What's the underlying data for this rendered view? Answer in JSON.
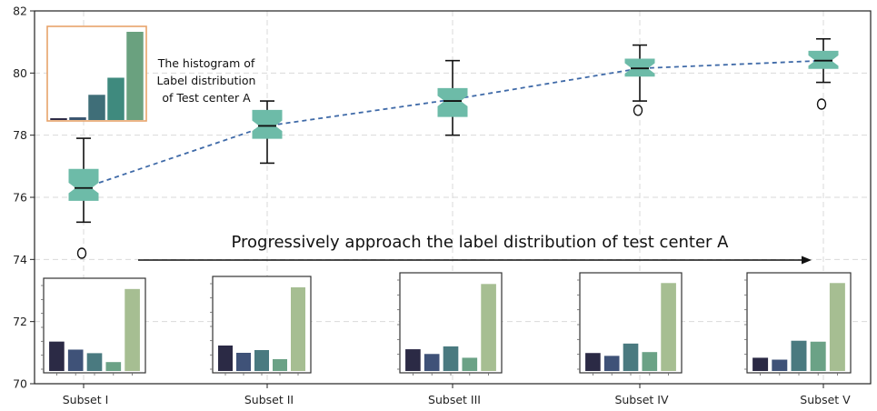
{
  "chart_data": {
    "type": "box",
    "categories": [
      "Subset I",
      "Subset II",
      "Subset III",
      "Subset IV",
      "Subset V"
    ],
    "ylim": [
      70,
      82
    ],
    "yticks": [
      "70",
      "72",
      "74",
      "76",
      "78",
      "80",
      "82"
    ],
    "grid": true,
    "box_color": "#6dbba8",
    "line_color": "#3f6aa8",
    "boxes": [
      {
        "whisker_low": 75.2,
        "q1": 75.9,
        "median": 76.3,
        "q3": 76.9,
        "whisker_high": 77.9,
        "outliers": [
          74.2
        ]
      },
      {
        "whisker_low": 77.1,
        "q1": 77.9,
        "median": 78.3,
        "q3": 78.8,
        "whisker_high": 79.1,
        "outliers": []
      },
      {
        "whisker_low": 78.0,
        "q1": 78.6,
        "median": 79.1,
        "q3": 79.5,
        "whisker_high": 80.4,
        "outliers": []
      },
      {
        "whisker_low": 79.1,
        "q1": 79.9,
        "median": 80.15,
        "q3": 80.45,
        "whisker_high": 80.9,
        "outliers": [
          78.8
        ]
      },
      {
        "whisker_low": 79.7,
        "q1": 80.15,
        "median": 80.4,
        "q3": 80.7,
        "whisker_high": 81.1,
        "outliers": [
          79.0
        ]
      }
    ],
    "mean_line": [
      76.3,
      78.3,
      79.15,
      80.15,
      80.4
    ],
    "annotation": "Progressively approach the label distribution of test center A",
    "inset_label": [
      "The histogram of",
      "Label distribution",
      "of Test center A"
    ],
    "inset_hist": {
      "title_box_color": "#e8a36a",
      "values": [
        0.02,
        0.03,
        0.28,
        0.47,
        0.98
      ],
      "colors": [
        "#2d2a45",
        "#3a5670",
        "#3f6e78",
        "#3f8a7e",
        "#6aa17f"
      ]
    },
    "subset_hists": [
      {
        "values": [
          0.33,
          0.24,
          0.2,
          0.1,
          0.92
        ],
        "colors": [
          "#2b2a45",
          "#3f5278",
          "#4a7a80",
          "#6ba286",
          "#a6be92"
        ]
      },
      {
        "values": [
          0.28,
          0.2,
          0.23,
          0.13,
          0.92
        ],
        "colors": [
          "#2b2a45",
          "#3f5278",
          "#4a7a80",
          "#6ba286",
          "#a6be92"
        ]
      },
      {
        "values": [
          0.23,
          0.18,
          0.26,
          0.14,
          0.92
        ],
        "colors": [
          "#2b2a45",
          "#3f5278",
          "#4a7a80",
          "#6ba286",
          "#a6be92"
        ]
      },
      {
        "values": [
          0.19,
          0.16,
          0.29,
          0.2,
          0.93
        ],
        "colors": [
          "#2b2a45",
          "#3f5278",
          "#4a7a80",
          "#6ba286",
          "#a6be92"
        ]
      },
      {
        "values": [
          0.14,
          0.12,
          0.32,
          0.31,
          0.93
        ],
        "colors": [
          "#2b2a45",
          "#3f5278",
          "#4a7a80",
          "#6ba286",
          "#a6be92"
        ]
      }
    ]
  }
}
